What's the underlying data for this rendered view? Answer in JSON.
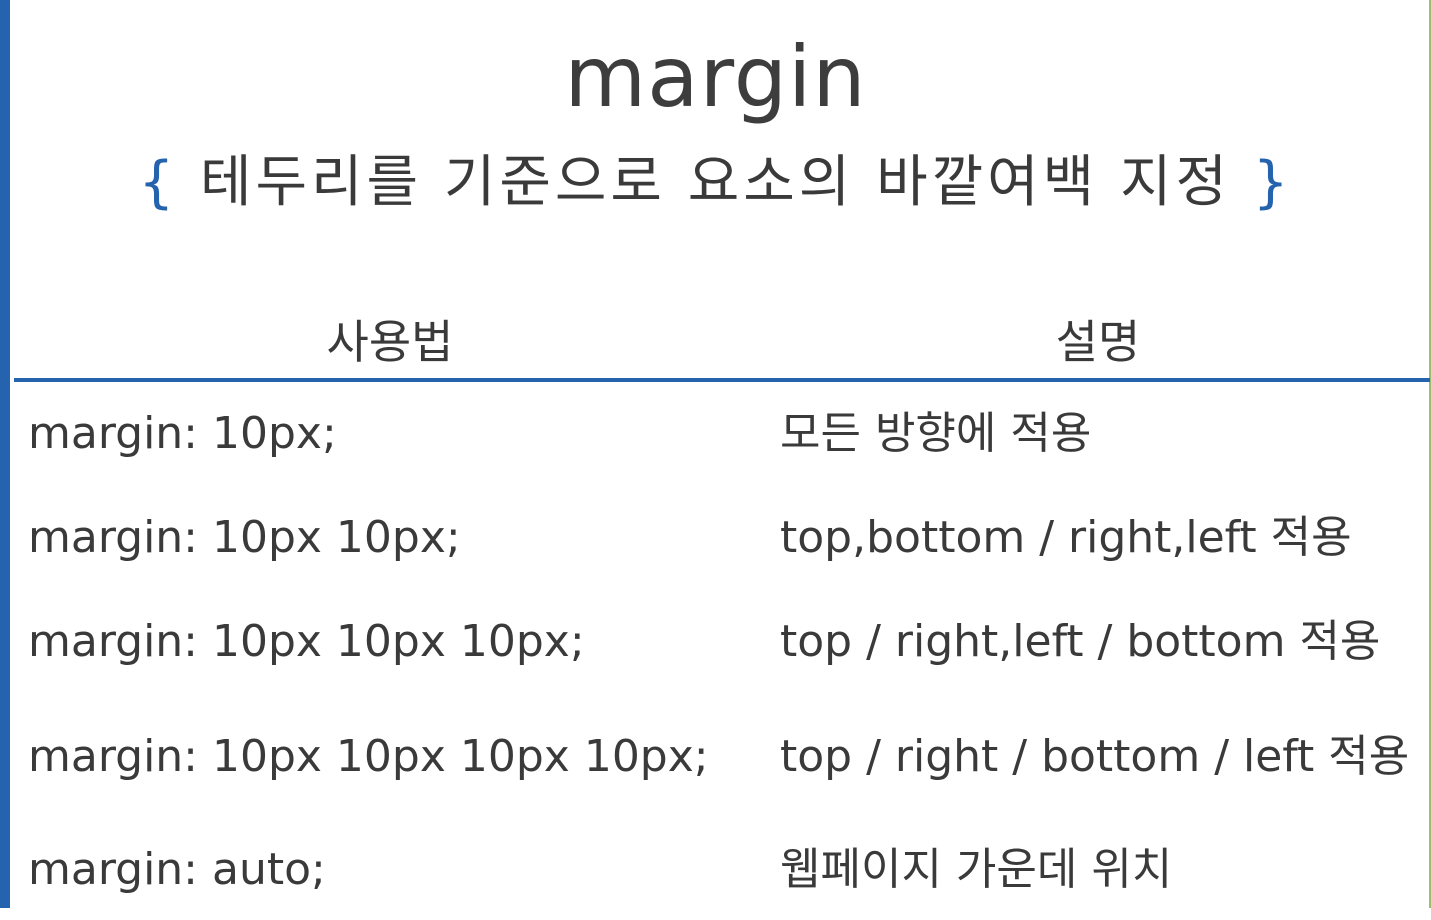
{
  "slide": {
    "title": "margin",
    "subtitle": {
      "open_brace": "{",
      "text": "테두리를 기준으로 요소의 바깥여백 지정",
      "close_brace": "}"
    },
    "accent_color": "#2563ae"
  },
  "table": {
    "headers": {
      "usage": "사용법",
      "description": "설명"
    },
    "rows": [
      {
        "usage": "margin: 10px;",
        "description": "모든 방향에 적용"
      },
      {
        "usage": "margin: 10px 10px;",
        "description": "top,bottom / right,left 적용"
      },
      {
        "usage": "margin: 10px 10px 10px;",
        "description": "top / right,left / bottom 적용"
      },
      {
        "usage": "margin: 10px 10px 10px 10px;",
        "description": "top / right / bottom / left 적용"
      },
      {
        "usage": "margin: auto;",
        "description": "웹페이지 가운데 위치"
      }
    ]
  }
}
